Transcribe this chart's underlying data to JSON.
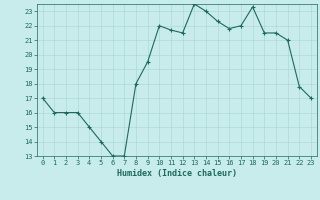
{
  "x": [
    0,
    1,
    2,
    3,
    4,
    5,
    6,
    7,
    8,
    9,
    10,
    11,
    12,
    13,
    14,
    15,
    16,
    17,
    18,
    19,
    20,
    21,
    22,
    23
  ],
  "y": [
    17,
    16,
    16,
    16,
    15,
    14,
    13,
    13,
    18,
    19.5,
    22,
    21.7,
    21.5,
    23.5,
    23,
    22.3,
    21.8,
    22,
    23.3,
    21.5,
    21.5,
    21,
    17.8,
    17
  ],
  "line_color": "#1a6b5a",
  "marker_color": "#1a6b5a",
  "bg_color": "#c8ecec",
  "grid_color": "#b0d8d8",
  "text_color": "#1a6b5a",
  "xlabel": "Humidex (Indice chaleur)",
  "ylim": [
    13,
    23.5
  ],
  "xlim": [
    -0.5,
    23.5
  ],
  "yticks": [
    13,
    14,
    15,
    16,
    17,
    18,
    19,
    20,
    21,
    22,
    23
  ],
  "xticks": [
    0,
    1,
    2,
    3,
    4,
    5,
    6,
    7,
    8,
    9,
    10,
    11,
    12,
    13,
    14,
    15,
    16,
    17,
    18,
    19,
    20,
    21,
    22,
    23
  ]
}
